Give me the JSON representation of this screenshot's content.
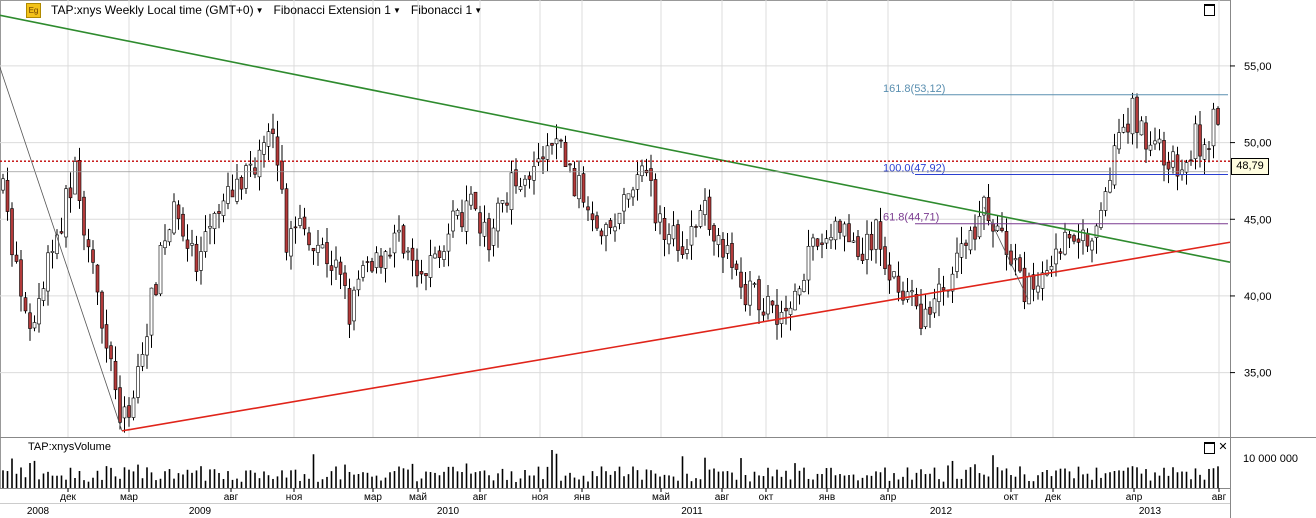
{
  "toolbar": {
    "symbol_label": "TAP:xnys Weekly Local time (GMT+0)",
    "fib_ext_label": "Fibonacci Extension 1",
    "fib_label": "Fibonacci 1",
    "icon": "eg-logo-icon"
  },
  "volume_panel": {
    "label": "TAP:xnysVolume",
    "tick_label": "10 000 000"
  },
  "current_price": "48,79",
  "colors": {
    "candle_up": "#ffffff",
    "candle_down": "#b33a3a",
    "candle_outline": "#000000",
    "green_trendline": "#2e8b2e",
    "red_trendline": "#e0241a",
    "price_dotted": "#c00000",
    "fib_161": "#5a8fb0",
    "fib_100": "#2a3fd0",
    "fib_61": "#7a3a90",
    "grid": "#dcdcdc",
    "volume_bar": "#000000"
  },
  "chart_data": {
    "type": "candlestick",
    "interval": "Weekly",
    "ylim": [
      30.8,
      59.3
    ],
    "y_ticks": [
      "35,00",
      "40,00",
      "45,00",
      "50,00",
      "55,00"
    ],
    "y_tick_values": [
      35,
      40,
      45,
      50,
      55
    ],
    "x_month_labels": [
      "дек",
      "мар",
      "авг",
      "ноя",
      "мар",
      "май",
      "авг",
      "ноя",
      "янв",
      "май",
      "авг",
      "окт",
      "янв",
      "апр",
      "окт",
      "дек",
      "апр",
      "авг"
    ],
    "x_month_positions": [
      68,
      129,
      231,
      294,
      373,
      418,
      480,
      540,
      582,
      661,
      722,
      766,
      827,
      888,
      1011,
      1053,
      1134,
      1219
    ],
    "x_year_labels": [
      "2008",
      "2009",
      "2010",
      "2011",
      "2012",
      "2013"
    ],
    "x_year_positions": [
      38,
      200,
      448,
      692,
      941,
      1150
    ],
    "fibonacci_levels": [
      {
        "label": "161.8(53,12)",
        "value": 53.12
      },
      {
        "label": "100.0(47,92)",
        "value": 47.92
      },
      {
        "label": "61.8(44,71)",
        "value": 44.71
      }
    ],
    "current_price_value": 48.79,
    "anchors": [
      [
        0,
        48.0
      ],
      [
        20,
        40.0
      ],
      [
        30,
        37.0
      ],
      [
        48,
        42.0
      ],
      [
        58,
        44.0
      ],
      [
        76,
        48.5
      ],
      [
        88,
        42.5
      ],
      [
        98,
        40.0
      ],
      [
        110,
        36.5
      ],
      [
        122,
        31.2
      ],
      [
        132,
        33.5
      ],
      [
        148,
        38.5
      ],
      [
        164,
        43.5
      ],
      [
        178,
        46.0
      ],
      [
        196,
        41.5
      ],
      [
        212,
        44.5
      ],
      [
        232,
        46.8
      ],
      [
        246,
        48.0
      ],
      [
        262,
        49.5
      ],
      [
        276,
        50.3
      ],
      [
        286,
        43.5
      ],
      [
        298,
        45.0
      ],
      [
        318,
        43.5
      ],
      [
        338,
        41.5
      ],
      [
        350,
        39.0
      ],
      [
        366,
        42.0
      ],
      [
        386,
        43.0
      ],
      [
        402,
        44.0
      ],
      [
        420,
        40.5
      ],
      [
        436,
        43.0
      ],
      [
        452,
        44.5
      ],
      [
        470,
        45.8
      ],
      [
        488,
        43.5
      ],
      [
        504,
        46.5
      ],
      [
        520,
        48.0
      ],
      [
        540,
        48.5
      ],
      [
        558,
        50.3
      ],
      [
        572,
        47.5
      ],
      [
        590,
        46.0
      ],
      [
        610,
        44.0
      ],
      [
        628,
        46.5
      ],
      [
        646,
        48.0
      ],
      [
        656,
        45.5
      ],
      [
        670,
        44.0
      ],
      [
        688,
        43.5
      ],
      [
        706,
        45.5
      ],
      [
        722,
        43.5
      ],
      [
        734,
        41.5
      ],
      [
        750,
        40.0
      ],
      [
        770,
        39.5
      ],
      [
        788,
        38.5
      ],
      [
        800,
        41.5
      ],
      [
        820,
        43.5
      ],
      [
        840,
        44.5
      ],
      [
        860,
        42.5
      ],
      [
        876,
        44.0
      ],
      [
        890,
        41.5
      ],
      [
        906,
        40.5
      ],
      [
        918,
        38.5
      ],
      [
        934,
        39.5
      ],
      [
        950,
        41.5
      ],
      [
        966,
        43.5
      ],
      [
        984,
        45.8
      ],
      [
        996,
        44.5
      ],
      [
        1014,
        42.0
      ],
      [
        1026,
        40.0
      ],
      [
        1040,
        41.5
      ],
      [
        1056,
        43.0
      ],
      [
        1074,
        44.5
      ],
      [
        1090,
        43.5
      ],
      [
        1100,
        46.0
      ],
      [
        1110,
        48.5
      ],
      [
        1120,
        50.0
      ],
      [
        1132,
        52.0
      ],
      [
        1146,
        50.5
      ],
      [
        1160,
        49.5
      ],
      [
        1172,
        48.5
      ],
      [
        1184,
        47.8
      ],
      [
        1196,
        50.5
      ],
      [
        1206,
        49.0
      ],
      [
        1214,
        52.0
      ],
      [
        1222,
        48.8
      ]
    ]
  }
}
